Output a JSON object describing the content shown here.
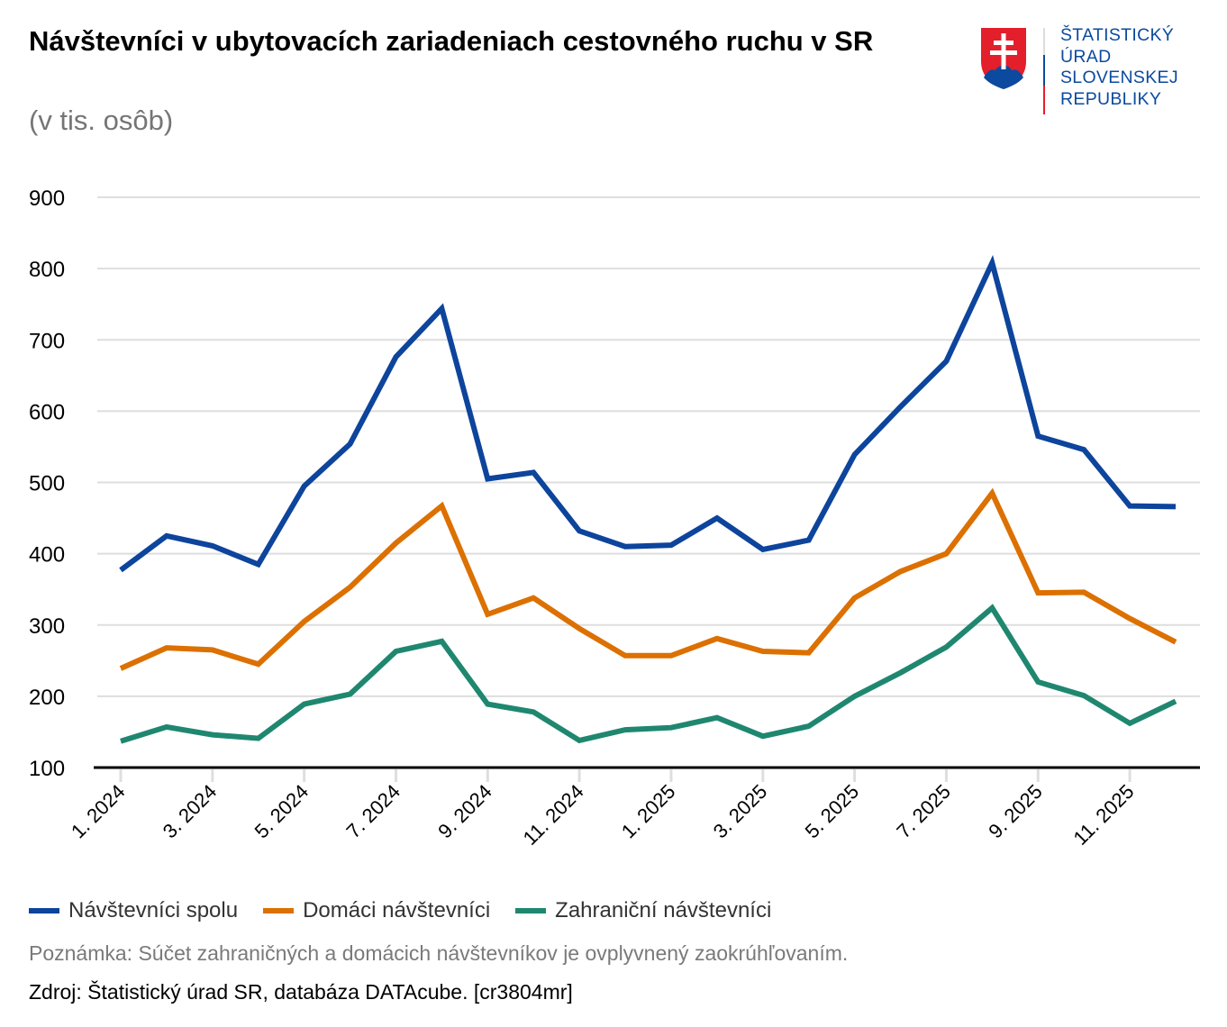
{
  "header": {
    "title": "Návštevníci v ubytovacích zariadeniach cestovného ruchu v SR",
    "subtitle": "(v tis. osôb)"
  },
  "logo": {
    "lines": [
      "ŠTATISTICKÝ",
      "ÚRAD",
      "SLOVENSKEJ",
      "REPUBLIKY"
    ],
    "text_color": "#0b4a9e",
    "shield_red": "#e21f2b",
    "shield_blue": "#0b4a9e"
  },
  "chart_data": {
    "type": "line",
    "title": "Návštevníci v ubytovacích zariadeniach cestovného ruchu v SR",
    "subtitle": "(v tis. osôb)",
    "xlabel": "",
    "ylabel": "",
    "ylim": [
      100,
      900
    ],
    "yticks": [
      100,
      200,
      300,
      400,
      500,
      600,
      700,
      800,
      900
    ],
    "grid": true,
    "legend_position": "bottom-left",
    "x": [
      "1. 2024",
      "2. 2024",
      "3. 2024",
      "4. 2024",
      "5. 2024",
      "6. 2024",
      "7. 2024",
      "8. 2024",
      "9. 2024",
      "10. 2024",
      "11. 2024",
      "12. 2024",
      "1. 2025",
      "2. 2025",
      "3. 2025",
      "4. 2025",
      "5. 2025",
      "6. 2025",
      "7. 2025",
      "8. 2025",
      "9. 2025",
      "10. 2025",
      "11. 2025",
      "12. 2025"
    ],
    "xtick_labels": [
      "1. 2024",
      "3. 2024",
      "5. 2024",
      "7. 2024",
      "9. 2024",
      "11. 2024",
      "1. 2025",
      "3. 2025",
      "5. 2025",
      "7. 2025",
      "9. 2025",
      "11. 2025"
    ],
    "series": [
      {
        "name": "Návštevníci spolu",
        "color": "#0d449c",
        "values": [
          377,
          425,
          411,
          385,
          495,
          554,
          676,
          744,
          505,
          514,
          432,
          410,
          412,
          450,
          406,
          419,
          539,
          606,
          670,
          808,
          565,
          546,
          467,
          466
        ]
      },
      {
        "name": "Domáci návštevníci",
        "color": "#dc7000",
        "values": [
          239,
          268,
          265,
          245,
          305,
          353,
          415,
          467,
          315,
          338,
          295,
          257,
          257,
          281,
          263,
          261,
          338,
          375,
          400,
          485,
          345,
          346,
          309,
          276
        ]
      },
      {
        "name": "Zahraniční návštevníci",
        "color": "#1f8770",
        "values": [
          137,
          157,
          146,
          141,
          189,
          203,
          263,
          277,
          189,
          178,
          138,
          153,
          156,
          170,
          144,
          158,
          200,
          233,
          269,
          324,
          220,
          201,
          162,
          193
        ]
      }
    ]
  },
  "footer": {
    "note": "Poznámka: Súčet zahraničných a domácich návštevníkov je ovplyvnený zaokrúhľovaním.",
    "source": "Zdroj: Štatistický úrad SR, databáza DATAcube. [cr3804mr]"
  }
}
